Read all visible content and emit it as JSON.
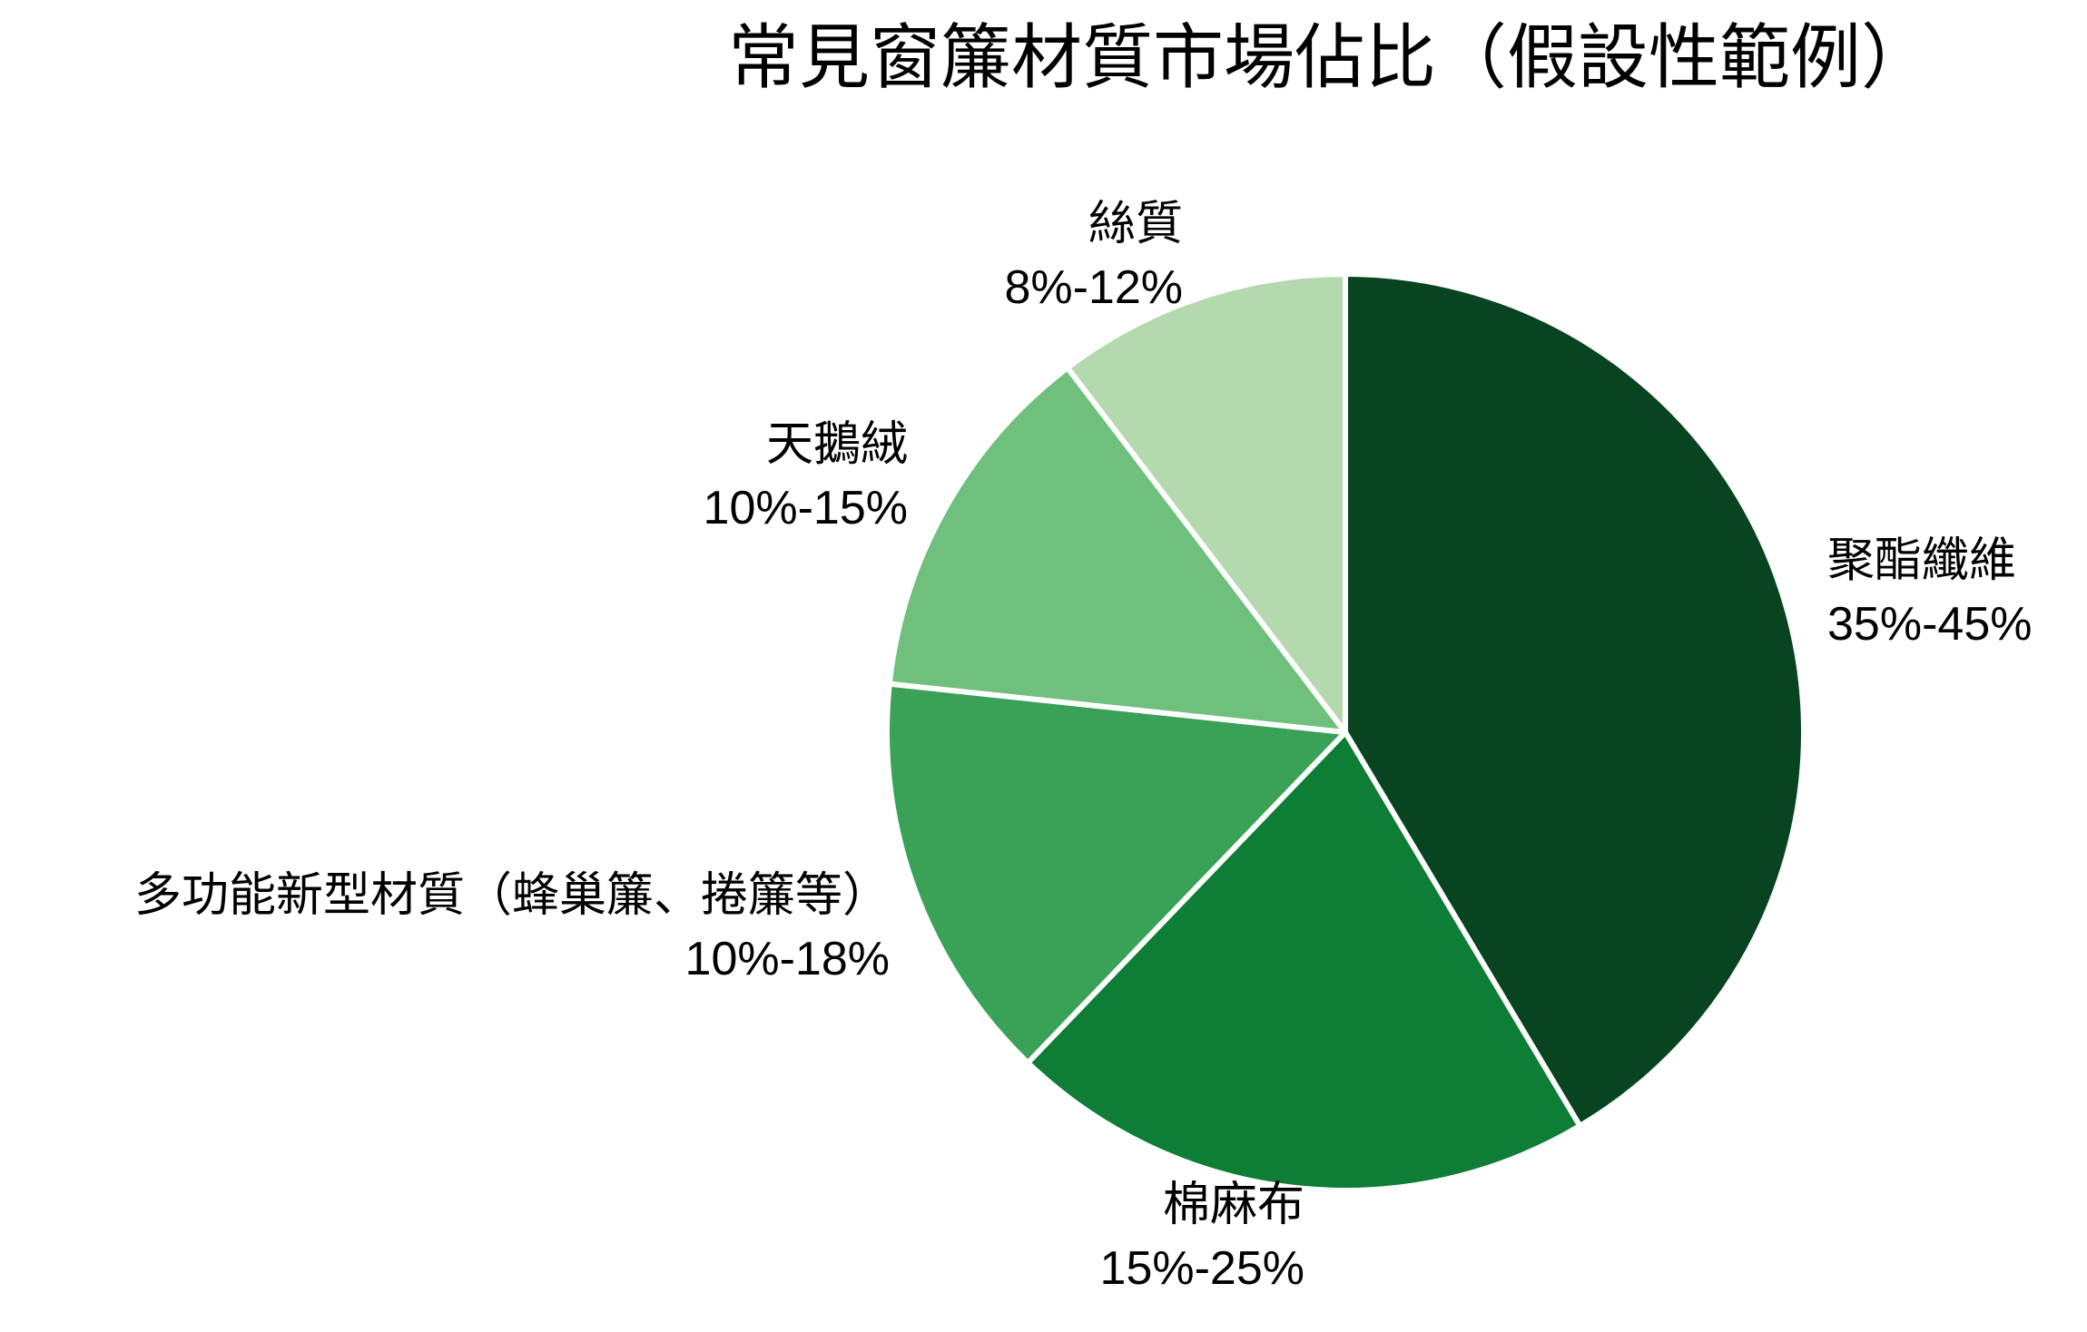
{
  "chart_data": {
    "type": "pie",
    "title": "常見窗簾材質市場佔比（假設性範例）",
    "start_angle_deg": 0,
    "direction": "clockwise",
    "border_color": "#ffffff",
    "background_color": "#ffffff",
    "text_color": "#000000",
    "slices": [
      {
        "name": "聚酯纖維",
        "range": "35%-45%",
        "value": 40,
        "color": "#07441f"
      },
      {
        "name": "棉麻布",
        "range": "15%-25%",
        "value": 20,
        "color": "#0e7d35"
      },
      {
        "name": "多功能新型材質（蜂巢簾、捲簾等）",
        "range": "10%-18%",
        "value": 14,
        "color": "#3aa257"
      },
      {
        "name": "天鵝絨",
        "range": "10%-15%",
        "value": 12.5,
        "color": "#6fc07c"
      },
      {
        "name": "絲質",
        "range": "8%-12%",
        "value": 10,
        "color": "#b5d9af"
      }
    ]
  }
}
